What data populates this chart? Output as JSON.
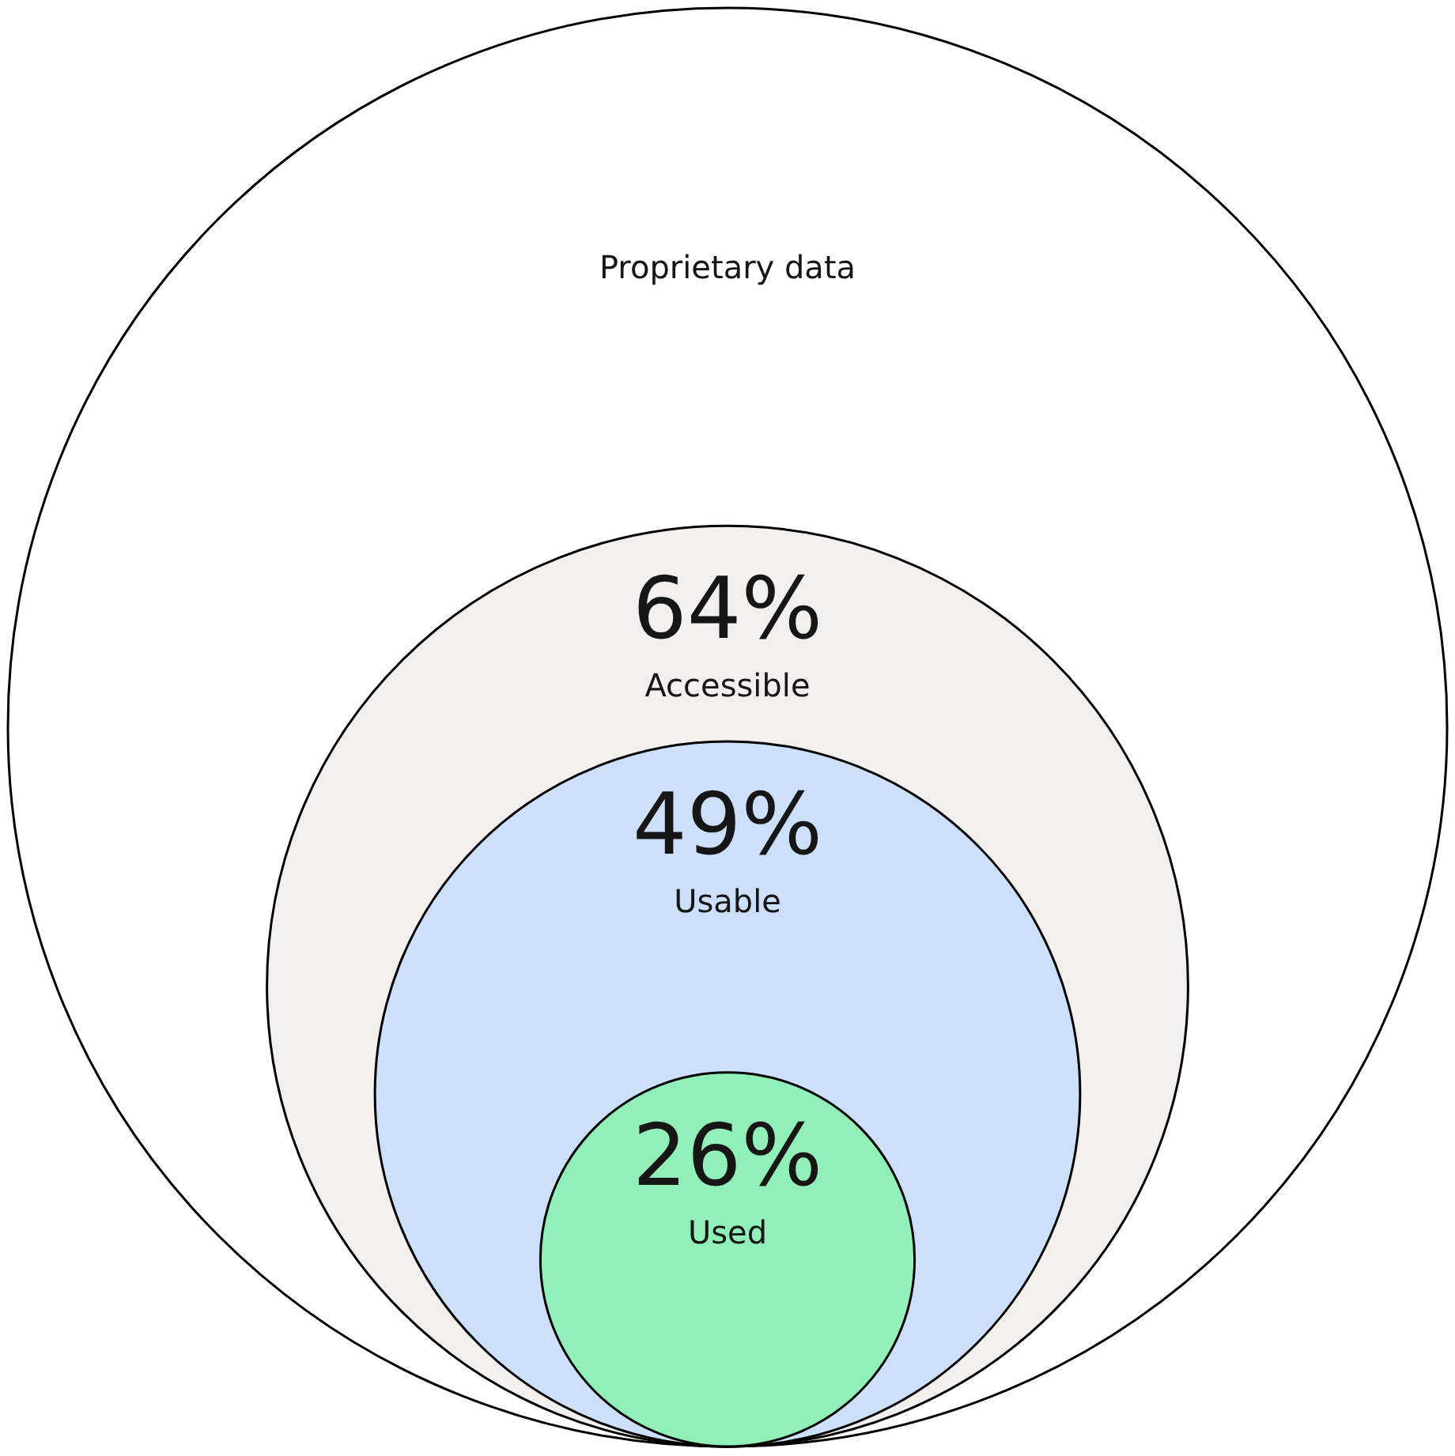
{
  "chart_data": {
    "type": "other",
    "categories": [
      "Proprietary data",
      "Accessible",
      "Usable",
      "Used"
    ],
    "values": [
      null,
      64,
      49,
      26
    ],
    "value_labels": [
      null,
      "64%",
      "49%",
      "26%"
    ],
    "colors": [
      "#ffffff",
      "#f4efef",
      "#cce0fc",
      "#91f0b8"
    ]
  }
}
